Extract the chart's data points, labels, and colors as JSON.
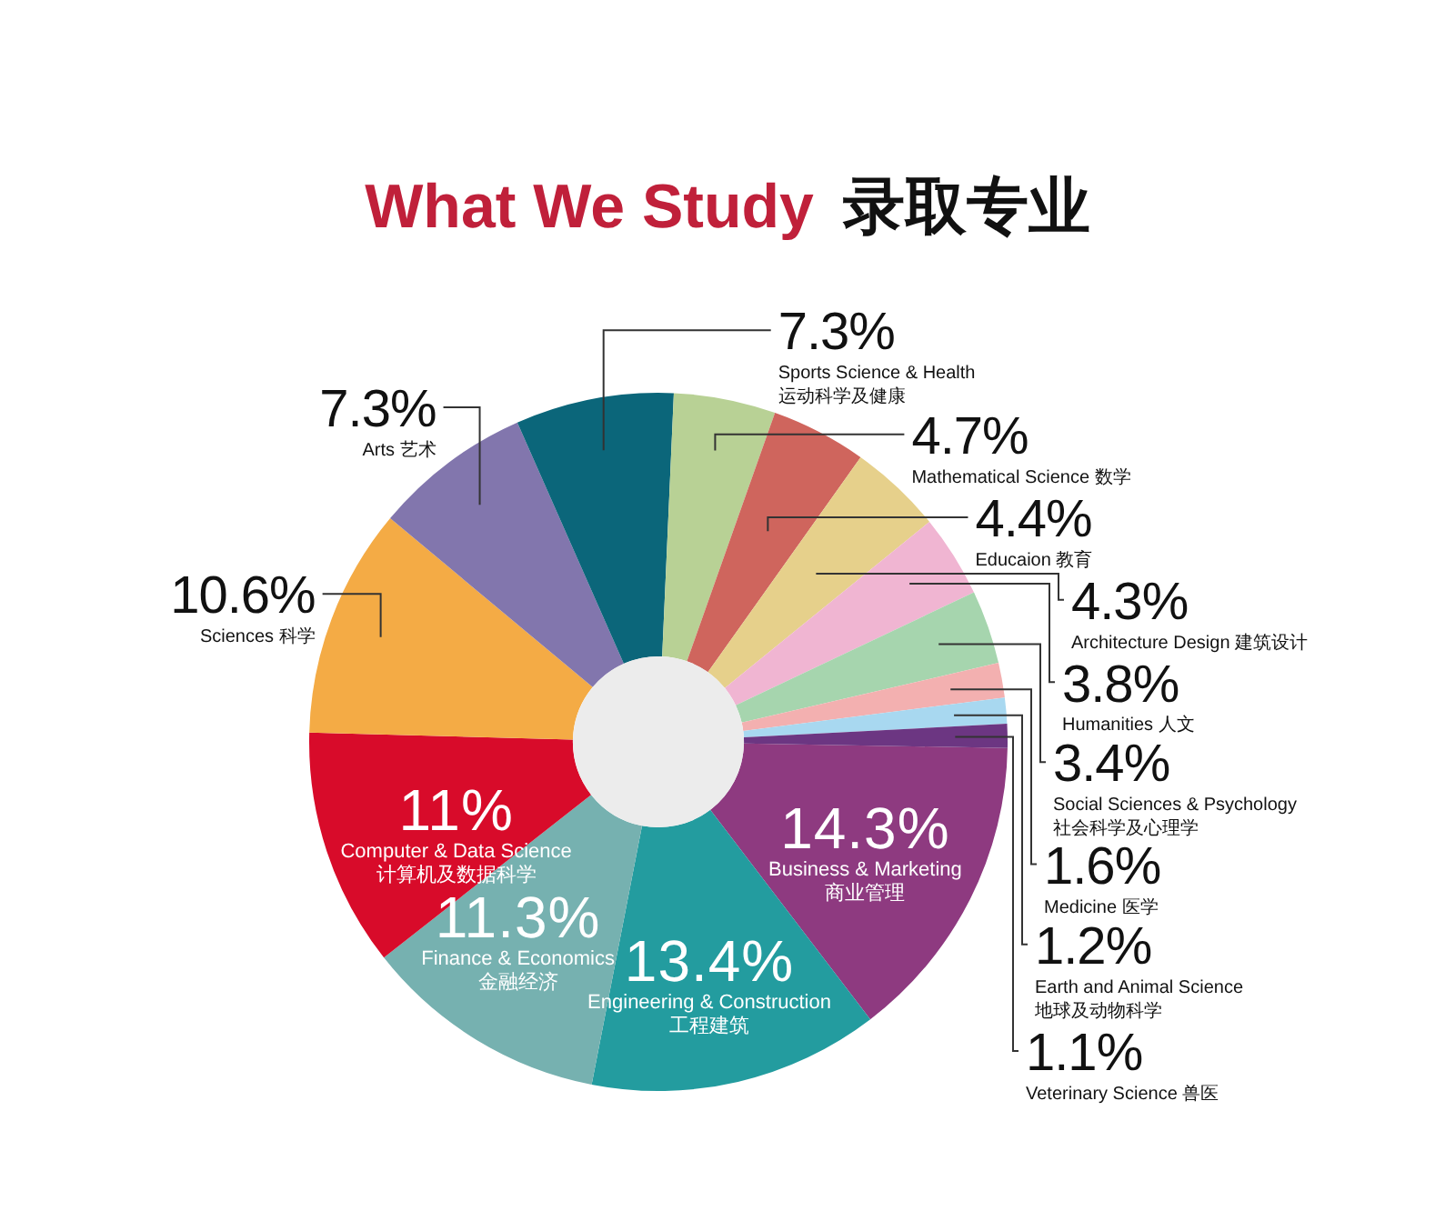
{
  "chart_data": {
    "type": "donut",
    "title": "What We Study",
    "subtitle": "录取专业",
    "categories": [
      "Business & Marketing\n商业管理",
      "Engineering & Construction\n工程建筑",
      "Finance & Economics\n金融经济",
      "Computer & Data Science\n计算机及数据科学",
      "Sciences 科学",
      "Arts 艺术",
      "Sports Science & Health\n运动科学及健康",
      "Mathematical Science 数学",
      "Educaion 教育",
      "Architecture Design 建筑设计",
      "Humanities 人文",
      "Social Sciences & Psychology\n社会科学及心理学",
      "Medicine 医学",
      "Earth and Animal Science\n地球及动物科学",
      "Veterinary Science 兽医"
    ],
    "values": [
      14.3,
      13.4,
      11.3,
      11,
      10.6,
      7.3,
      7.3,
      4.7,
      4.4,
      4.3,
      3.8,
      3.4,
      1.6,
      1.2,
      1.1
    ],
    "value_labels": [
      "14.3%",
      "13.4%",
      "11.3%",
      "11%",
      "10.6%",
      "7.3%",
      "7.3%",
      "4.7%",
      "4.4%",
      "4.3%",
      "3.8%",
      "3.4%",
      "1.6%",
      "1.2%",
      "1.1%"
    ],
    "colors": [
      "#8e3a80",
      "#239c9f",
      "#76b1b0",
      "#d80b2a",
      "#f4ab45",
      "#8276ad",
      "#0b667a",
      "#b8d195",
      "#cf655d",
      "#e6d08b",
      "#f0b5d2",
      "#a6d5ae",
      "#f3b0b0",
      "#a8d8f0",
      "#6c3682"
    ]
  }
}
